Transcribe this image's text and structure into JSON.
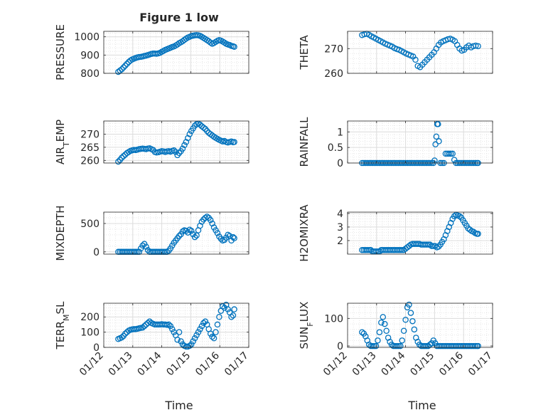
{
  "figure": {
    "title": "Figure 1 low",
    "xlabel": "Time",
    "marker_color": "#0072BD",
    "xticks": [
      "01/12",
      "01/13",
      "01/14",
      "01/15",
      "01/16",
      "01/17"
    ]
  },
  "chart_data": [
    {
      "type": "scatter",
      "id": "pressure",
      "ylabel": "PRESSURE",
      "ylim": [
        800,
        1030
      ],
      "yticks": [
        800,
        900,
        1000
      ],
      "xlim": [
        0,
        5
      ],
      "grid": true,
      "x": [
        0.5,
        0.56,
        0.62,
        0.68,
        0.74,
        0.8,
        0.86,
        0.92,
        0.98,
        1.04,
        1.1,
        1.16,
        1.22,
        1.28,
        1.34,
        1.4,
        1.46,
        1.52,
        1.58,
        1.64,
        1.7,
        1.76,
        1.82,
        1.88,
        1.94,
        2.0,
        2.06,
        2.12,
        2.18,
        2.24,
        2.3,
        2.36,
        2.42,
        2.48,
        2.54,
        2.6,
        2.66,
        2.72,
        2.78,
        2.84,
        2.9,
        2.96,
        3.02,
        3.08,
        3.14,
        3.2,
        3.26,
        3.32,
        3.38,
        3.44,
        3.5,
        3.56,
        3.62,
        3.68,
        3.74,
        3.8,
        3.86,
        3.92,
        3.98,
        4.04,
        4.1,
        4.16,
        4.22,
        4.28,
        4.34,
        4.4,
        4.46,
        4.5
      ],
      "y": [
        808,
        815,
        822,
        832,
        842,
        852,
        862,
        870,
        876,
        880,
        884,
        887,
        889,
        890,
        892,
        895,
        897,
        900,
        903,
        906,
        908,
        908,
        907,
        909,
        912,
        918,
        923,
        928,
        932,
        936,
        940,
        944,
        947,
        952,
        958,
        965,
        970,
        976,
        983,
        990,
        996,
        1000,
        1004,
        1006,
        1008,
        1009,
        1008,
        1005,
        1000,
        994,
        988,
        982,
        976,
        968,
        962,
        966,
        972,
        978,
        982,
        979,
        974,
        968,
        962,
        958,
        955,
        950,
        948,
        945
      ]
    },
    {
      "type": "scatter",
      "id": "theta",
      "ylabel": "THETA",
      "ylim": [
        260,
        277
      ],
      "yticks": [
        260,
        270
      ],
      "xlim": [
        0,
        5
      ],
      "grid": true,
      "x": [
        0.5,
        0.58,
        0.66,
        0.74,
        0.82,
        0.9,
        0.98,
        1.06,
        1.14,
        1.22,
        1.3,
        1.38,
        1.46,
        1.54,
        1.62,
        1.7,
        1.78,
        1.86,
        1.94,
        2.02,
        2.1,
        2.18,
        2.26,
        2.34,
        2.42,
        2.5,
        2.58,
        2.66,
        2.74,
        2.82,
        2.9,
        2.98,
        3.06,
        3.14,
        3.22,
        3.3,
        3.38,
        3.46,
        3.54,
        3.62,
        3.7,
        3.78,
        3.86,
        3.94,
        4.02,
        4.1,
        4.18,
        4.26,
        4.34,
        4.42,
        4.5
      ],
      "y": [
        275.5,
        275.8,
        276,
        275.6,
        275,
        274.5,
        274,
        273.5,
        273,
        272.5,
        272,
        271.6,
        271.2,
        270.8,
        270.2,
        269.8,
        269.5,
        269,
        268.5,
        268,
        267.6,
        267.2,
        266.8,
        265.5,
        263,
        262.5,
        263.5,
        264.5,
        265.5,
        266.5,
        267.5,
        268.5,
        270,
        271.5,
        272.5,
        273,
        273.4,
        273.8,
        274,
        273.6,
        273,
        271.5,
        270,
        269.2,
        269.5,
        270.5,
        271.2,
        270.5,
        271,
        271.2,
        271
      ]
    },
    {
      "type": "scatter",
      "id": "air-temp",
      "ylabel": "AIR_TEMP",
      "ylim": [
        259,
        275
      ],
      "yticks": [
        260,
        265,
        270
      ],
      "xlim": [
        0,
        5
      ],
      "grid": true,
      "x": [
        0.5,
        0.56,
        0.62,
        0.68,
        0.74,
        0.8,
        0.86,
        0.92,
        0.98,
        1.04,
        1.1,
        1.16,
        1.22,
        1.28,
        1.34,
        1.4,
        1.46,
        1.52,
        1.58,
        1.64,
        1.7,
        1.76,
        1.82,
        1.88,
        1.94,
        2.0,
        2.06,
        2.12,
        2.18,
        2.24,
        2.3,
        2.36,
        2.42,
        2.48,
        2.54,
        2.6,
        2.66,
        2.72,
        2.78,
        2.84,
        2.9,
        2.96,
        3.02,
        3.08,
        3.14,
        3.2,
        3.26,
        3.32,
        3.38,
        3.44,
        3.5,
        3.56,
        3.62,
        3.68,
        3.74,
        3.8,
        3.86,
        3.92,
        3.98,
        4.04,
        4.1,
        4.16,
        4.22,
        4.28,
        4.34,
        4.4,
        4.46,
        4.5
      ],
      "y": [
        259.5,
        260.2,
        261,
        261.6,
        262.2,
        262.8,
        263.2,
        263.6,
        263.8,
        264,
        263.9,
        264.1,
        264.3,
        264.4,
        264.5,
        264.4,
        264.3,
        264.5,
        264.6,
        264.3,
        264,
        263.2,
        263,
        263.1,
        263.3,
        263.5,
        263.4,
        263.2,
        263.4,
        263.5,
        263.3,
        263.6,
        263.8,
        263.2,
        262,
        262.8,
        263.5,
        264.5,
        265.8,
        267,
        268.5,
        270,
        271.2,
        272.2,
        273.2,
        273.8,
        274,
        273.6,
        273,
        272.5,
        272,
        271.2,
        270.5,
        270,
        269.5,
        269,
        268.6,
        268.2,
        267.8,
        267.5,
        267.2,
        267.4,
        267,
        266.8,
        267,
        267.2,
        266.9,
        267
      ]
    },
    {
      "type": "scatter",
      "id": "rainfall",
      "ylabel": "RAINFALL",
      "ylim": [
        0,
        1.35
      ],
      "yticks": [
        0,
        0.5,
        1
      ],
      "xlim": [
        0,
        5
      ],
      "grid": true,
      "x": [
        0.5,
        0.56,
        0.62,
        0.68,
        0.74,
        0.8,
        0.86,
        0.92,
        0.98,
        1.04,
        1.1,
        1.16,
        1.22,
        1.28,
        1.34,
        1.4,
        1.46,
        1.52,
        1.58,
        1.64,
        1.7,
        1.76,
        1.82,
        1.88,
        1.94,
        2.0,
        2.06,
        2.12,
        2.18,
        2.24,
        2.3,
        2.36,
        2.42,
        2.48,
        2.54,
        2.6,
        2.66,
        2.72,
        2.78,
        2.84,
        2.9,
        2.96,
        3.0,
        3.03,
        3.06,
        3.09,
        3.12,
        3.15,
        3.2,
        3.26,
        3.32,
        3.38,
        3.44,
        3.5,
        3.56,
        3.62,
        3.68,
        3.74,
        3.8,
        3.86,
        3.92,
        3.98,
        4.04,
        4.1,
        4.16,
        4.22,
        4.28,
        4.34,
        4.4,
        4.46,
        4.5
      ],
      "y": [
        0,
        0,
        0,
        0,
        0,
        0,
        0,
        0,
        0,
        0,
        0,
        0,
        0,
        0,
        0,
        0,
        0,
        0,
        0,
        0,
        0,
        0,
        0,
        0,
        0,
        0,
        0,
        0,
        0,
        0,
        0,
        0,
        0,
        0,
        0,
        0,
        0,
        0,
        0,
        0,
        0,
        0,
        0.08,
        0.6,
        0.85,
        1.25,
        1.25,
        0.7,
        0,
        0,
        0,
        0.3,
        0.3,
        0.3,
        0.3,
        0.3,
        0.1,
        0,
        0,
        0,
        0,
        0,
        0,
        0,
        0,
        0,
        0,
        0,
        0,
        0,
        0
      ]
    },
    {
      "type": "scatter",
      "id": "mixdepth",
      "ylabel": "MIXDEPTH",
      "ylim": [
        -40,
        700
      ],
      "yticks": [
        0,
        500
      ],
      "xlim": [
        0,
        5
      ],
      "grid": true,
      "x": [
        0.5,
        0.56,
        0.62,
        0.68,
        0.74,
        0.8,
        0.86,
        0.92,
        0.98,
        1.04,
        1.1,
        1.16,
        1.22,
        1.28,
        1.34,
        1.4,
        1.46,
        1.52,
        1.58,
        1.64,
        1.7,
        1.76,
        1.82,
        1.88,
        1.94,
        2.0,
        2.06,
        2.12,
        2.18,
        2.24,
        2.3,
        2.36,
        2.42,
        2.48,
        2.54,
        2.6,
        2.66,
        2.72,
        2.78,
        2.84,
        2.9,
        2.96,
        3.02,
        3.08,
        3.14,
        3.2,
        3.26,
        3.32,
        3.38,
        3.44,
        3.5,
        3.56,
        3.62,
        3.68,
        3.74,
        3.8,
        3.86,
        3.92,
        3.98,
        4.04,
        4.1,
        4.16,
        4.22,
        4.28,
        4.34,
        4.4,
        4.46,
        4.5
      ],
      "y": [
        0,
        0,
        0,
        0,
        0,
        0,
        0,
        0,
        0,
        0,
        0,
        0,
        0,
        60,
        110,
        140,
        90,
        30,
        0,
        0,
        0,
        0,
        0,
        0,
        0,
        0,
        0,
        0,
        0,
        20,
        60,
        110,
        160,
        200,
        240,
        280,
        310,
        360,
        380,
        370,
        340,
        390,
        370,
        310,
        260,
        290,
        380,
        460,
        530,
        570,
        600,
        620,
        600,
        560,
        500,
        430,
        380,
        330,
        270,
        230,
        200,
        210,
        250,
        300,
        280,
        200,
        260,
        240
      ]
    },
    {
      "type": "scatter",
      "id": "h2omixra",
      "ylabel": "H2OMIXRA",
      "ylim": [
        1,
        4.1
      ],
      "yticks": [
        2,
        3,
        4
      ],
      "xlim": [
        0,
        5
      ],
      "grid": true,
      "x": [
        0.5,
        0.56,
        0.62,
        0.68,
        0.74,
        0.8,
        0.86,
        0.92,
        0.98,
        1.04,
        1.1,
        1.16,
        1.22,
        1.28,
        1.34,
        1.4,
        1.46,
        1.52,
        1.58,
        1.64,
        1.7,
        1.76,
        1.82,
        1.88,
        1.94,
        2.0,
        2.06,
        2.12,
        2.18,
        2.24,
        2.3,
        2.36,
        2.42,
        2.48,
        2.54,
        2.6,
        2.66,
        2.72,
        2.78,
        2.84,
        2.9,
        2.96,
        3.02,
        3.08,
        3.14,
        3.2,
        3.26,
        3.32,
        3.38,
        3.44,
        3.5,
        3.56,
        3.62,
        3.68,
        3.74,
        3.8,
        3.86,
        3.92,
        3.98,
        4.04,
        4.1,
        4.16,
        4.22,
        4.28,
        4.34,
        4.4,
        4.46,
        4.5
      ],
      "y": [
        1.3,
        1.3,
        1.3,
        1.3,
        1.3,
        1.3,
        1.2,
        1.2,
        1.2,
        1.2,
        1.2,
        1.3,
        1.3,
        1.3,
        1.3,
        1.3,
        1.3,
        1.3,
        1.3,
        1.3,
        1.3,
        1.3,
        1.3,
        1.3,
        1.3,
        1.4,
        1.5,
        1.6,
        1.7,
        1.75,
        1.75,
        1.75,
        1.75,
        1.75,
        1.7,
        1.7,
        1.7,
        1.7,
        1.7,
        1.7,
        1.6,
        1.6,
        1.6,
        1.5,
        1.55,
        1.7,
        1.9,
        2.1,
        2.4,
        2.7,
        3.0,
        3.3,
        3.6,
        3.8,
        3.9,
        3.85,
        3.8,
        3.7,
        3.5,
        3.3,
        3.1,
        2.9,
        2.8,
        2.7,
        2.65,
        2.55,
        2.5,
        2.5
      ]
    },
    {
      "type": "scatter",
      "id": "terr-msl",
      "ylabel": "TERR_MSL",
      "ylim": [
        0,
        290
      ],
      "yticks": [
        0,
        100,
        200
      ],
      "xlim": [
        0,
        5
      ],
      "grid": true,
      "x": [
        0.5,
        0.56,
        0.62,
        0.68,
        0.74,
        0.8,
        0.86,
        0.92,
        0.98,
        1.04,
        1.1,
        1.16,
        1.22,
        1.28,
        1.34,
        1.4,
        1.46,
        1.52,
        1.58,
        1.64,
        1.7,
        1.76,
        1.82,
        1.88,
        1.94,
        2.0,
        2.06,
        2.12,
        2.18,
        2.24,
        2.3,
        2.36,
        2.42,
        2.48,
        2.54,
        2.6,
        2.66,
        2.72,
        2.78,
        2.84,
        2.9,
        2.96,
        3.02,
        3.08,
        3.14,
        3.2,
        3.26,
        3.32,
        3.38,
        3.44,
        3.5,
        3.56,
        3.62,
        3.68,
        3.74,
        3.8,
        3.86,
        3.92,
        3.98,
        4.04,
        4.1,
        4.16,
        4.22,
        4.28,
        4.34,
        4.4,
        4.46,
        4.5
      ],
      "y": [
        55,
        60,
        65,
        75,
        90,
        100,
        110,
        115,
        118,
        120,
        120,
        122,
        125,
        128,
        130,
        140,
        150,
        160,
        170,
        160,
        155,
        150,
        150,
        150,
        150,
        152,
        150,
        150,
        148,
        150,
        140,
        120,
        100,
        80,
        50,
        100,
        40,
        20,
        10,
        5,
        5,
        10,
        20,
        40,
        60,
        80,
        100,
        120,
        140,
        160,
        170,
        150,
        120,
        90,
        70,
        60,
        100,
        150,
        200,
        240,
        270,
        260,
        280,
        250,
        230,
        200,
        210,
        250
      ]
    },
    {
      "type": "scatter",
      "id": "sun-flux",
      "ylabel": "SUN_FLUX",
      "ylim": [
        -5,
        155
      ],
      "yticks": [
        0,
        100
      ],
      "xlim": [
        0,
        5
      ],
      "grid": true,
      "x": [
        0.5,
        0.56,
        0.62,
        0.68,
        0.74,
        0.8,
        0.86,
        0.92,
        0.98,
        1.04,
        1.1,
        1.16,
        1.22,
        1.28,
        1.34,
        1.4,
        1.46,
        1.52,
        1.58,
        1.64,
        1.7,
        1.76,
        1.82,
        1.88,
        1.94,
        2.0,
        2.06,
        2.12,
        2.18,
        2.24,
        2.3,
        2.36,
        2.42,
        2.48,
        2.54,
        2.6,
        2.66,
        2.72,
        2.78,
        2.84,
        2.9,
        2.96,
        3.02,
        3.08,
        3.14,
        3.2,
        3.26,
        3.32,
        3.38,
        3.44,
        3.5,
        3.56,
        3.62,
        3.68,
        3.74,
        3.8,
        3.86,
        3.92,
        3.98,
        4.04,
        4.1,
        4.16,
        4.22,
        4.28,
        4.34,
        4.4,
        4.46,
        4.5
      ],
      "y": [
        50,
        45,
        35,
        20,
        5,
        0,
        0,
        0,
        0,
        20,
        50,
        85,
        105,
        80,
        55,
        30,
        15,
        5,
        0,
        0,
        0,
        0,
        0,
        20,
        55,
        95,
        140,
        150,
        120,
        90,
        60,
        30,
        15,
        5,
        0,
        0,
        0,
        0,
        0,
        5,
        10,
        20,
        10,
        0,
        0,
        0,
        0,
        0,
        0,
        0,
        0,
        0,
        0,
        0,
        0,
        0,
        0,
        0,
        0,
        0,
        0,
        0,
        0,
        0,
        0,
        0,
        0,
        0
      ]
    }
  ]
}
